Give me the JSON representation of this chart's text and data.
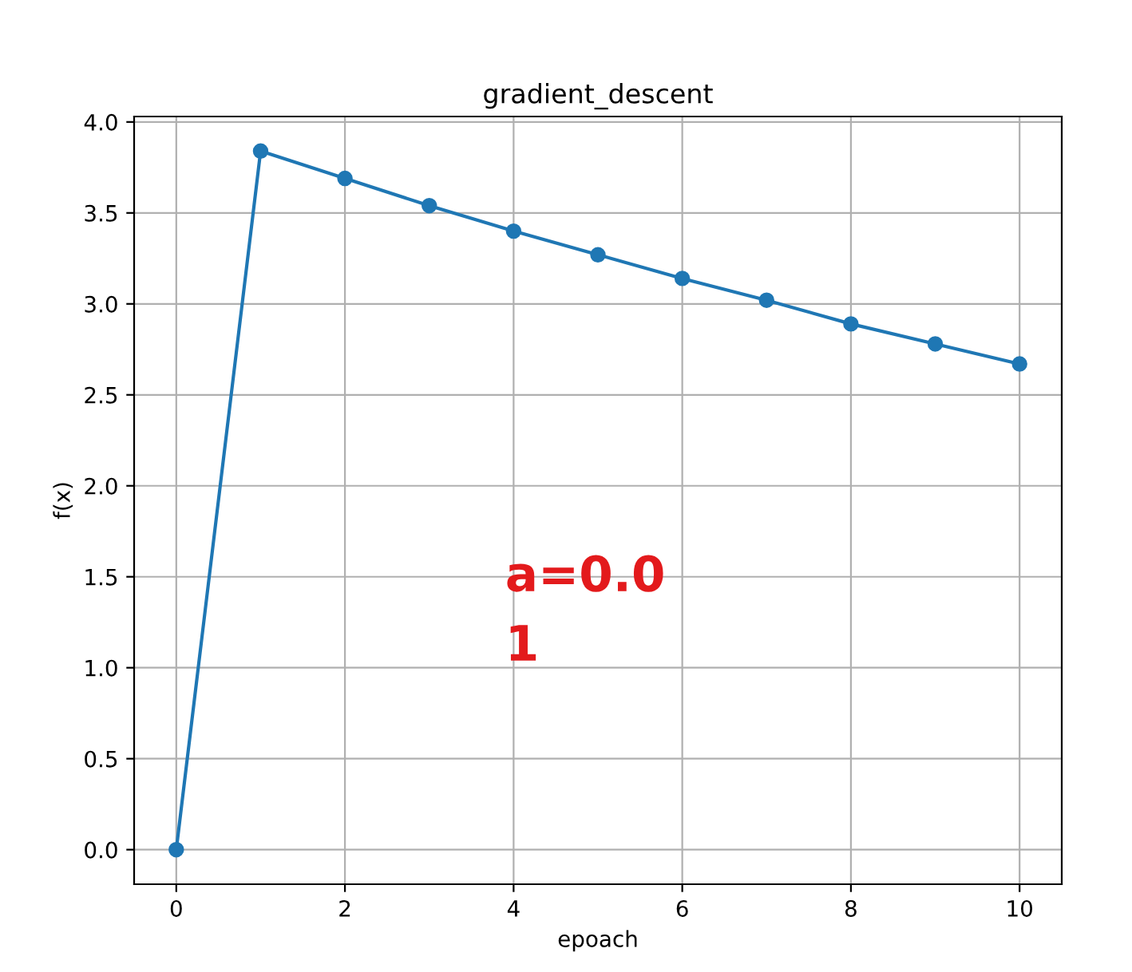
{
  "chart_data": {
    "type": "line",
    "title": "gradient_descent",
    "xlabel": "epoach",
    "ylabel": "f(x)",
    "x": [
      0,
      1,
      2,
      3,
      4,
      5,
      6,
      7,
      8,
      9,
      10
    ],
    "series": [
      {
        "color": "#1f77b4",
        "values": [
          0,
          3.84,
          3.69,
          3.54,
          3.4,
          3.27,
          3.14,
          3.02,
          2.89,
          2.78,
          2.67
        ]
      }
    ],
    "xlim": [
      -0.5,
      10.5
    ],
    "xticks": [
      0,
      2,
      4,
      6,
      8,
      10
    ],
    "ylim": [
      -0.19,
      4.03
    ],
    "yticks": [
      {
        "value": 0,
        "label": "0.0"
      },
      0.5,
      {
        "value": 1,
        "label": "1.0"
      },
      1.5,
      {
        "value": 2,
        "label": "2.0"
      },
      2.5,
      {
        "value": 3,
        "label": "3.0"
      },
      3.5,
      {
        "value": 4,
        "label": "4.0"
      }
    ],
    "grid": true,
    "marker": "circle",
    "line_style": "solid",
    "annotations": [
      "a=0.0\n1"
    ]
  }
}
